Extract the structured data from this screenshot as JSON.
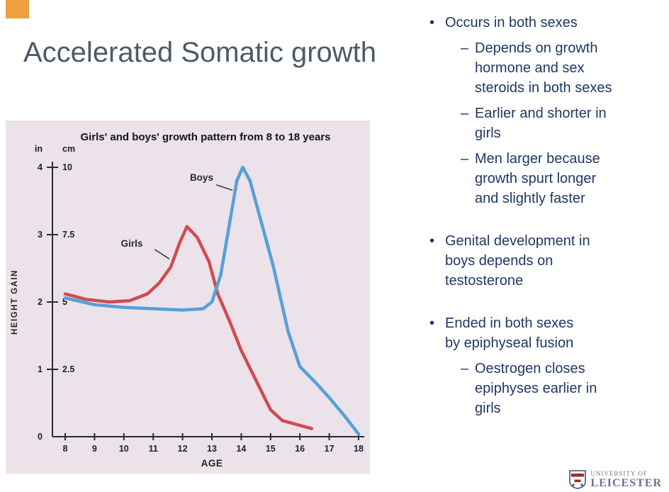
{
  "slide": {
    "title": "Accelerated Somatic growth"
  },
  "markers": {
    "l1": "•",
    "l2": "–"
  },
  "bullets": [
    {
      "text": "Occurs in both sexes",
      "subs": [
        "Depends on growth hormone and sex steroids in both sexes",
        "Earlier and shorter in girls",
        "Men larger because growth spurt longer and slightly faster"
      ]
    },
    {
      "text": "Genital development in boys depends on testosterone",
      "subs": []
    },
    {
      "text": "Ended in both sexes by epiphyseal fusion",
      "subs": [
        "Oestrogen closes epiphyses earlier in girls"
      ]
    }
  ],
  "logo": {
    "line1": "UNIVERSITY OF",
    "line2": "LEICESTER"
  },
  "colors": {
    "accent_orange": "#EE9F3F",
    "title_gray": "#4D5A68",
    "text_navy": "#1F3864",
    "chart_bg": "#EBE2EA",
    "girls_red": "#D14B52",
    "boys_blue": "#55A0D8"
  },
  "chart_data": {
    "type": "line",
    "title": "Girls' and boys' growth pattern from 8 to 18 years",
    "xlabel": "AGE",
    "ylabel": "HEIGHT GAIN",
    "y_unit_headers": [
      "in",
      "cm"
    ],
    "origin_label": "0",
    "x_ticks": [
      8,
      9,
      10,
      11,
      12,
      13,
      14,
      15,
      16,
      17,
      18
    ],
    "y_ticks": [
      {
        "in": "1",
        "cm_label": "2.5",
        "cm": 2.5
      },
      {
        "in": "2",
        "cm_label": "5",
        "cm": 5
      },
      {
        "in": "3",
        "cm_label": "7.5",
        "cm": 7.5
      },
      {
        "in": "4",
        "cm_label": "10",
        "cm": 10
      }
    ],
    "xlim": [
      8,
      18
    ],
    "ylim": [
      0,
      10
    ],
    "grid": false,
    "legend": "inline-labels",
    "series": [
      {
        "name": "Girls",
        "color": "#D14B52",
        "x": [
          8,
          8.7,
          9.5,
          10.2,
          10.8,
          11.2,
          11.6,
          11.9,
          12.15,
          12.5,
          12.9,
          13.2,
          13.6,
          14,
          14.5,
          15,
          15.4,
          15.9,
          16.4
        ],
        "y": [
          5.3,
          5.1,
          5.0,
          5.05,
          5.3,
          5.7,
          6.3,
          7.2,
          7.8,
          7.4,
          6.5,
          5.3,
          4.3,
          3.2,
          2.1,
          1.0,
          0.6,
          0.45,
          0.3
        ]
      },
      {
        "name": "Boys",
        "color": "#55A0D8",
        "x": [
          8,
          9,
          10,
          11,
          12,
          12.7,
          13,
          13.3,
          13.6,
          13.85,
          14.05,
          14.3,
          14.7,
          15.1,
          15.6,
          16,
          16.5,
          17,
          17.5,
          18
        ],
        "y": [
          5.15,
          4.9,
          4.8,
          4.75,
          4.7,
          4.75,
          5.0,
          6.0,
          7.9,
          9.5,
          10.0,
          9.5,
          7.9,
          6.3,
          3.9,
          2.6,
          2.05,
          1.45,
          0.8,
          0.1
        ]
      }
    ],
    "annotations": [
      {
        "text": "Girls",
        "tx": 9.9,
        "ty": 7.05,
        "lx1": 11.05,
        "ly1": 6.95,
        "lx2": 11.55,
        "ly2": 6.6
      },
      {
        "text": "Boys",
        "tx": 12.25,
        "ty": 9.5,
        "lx1": 13.15,
        "ly1": 9.35,
        "lx2": 13.7,
        "ly2": 9.15
      }
    ]
  }
}
